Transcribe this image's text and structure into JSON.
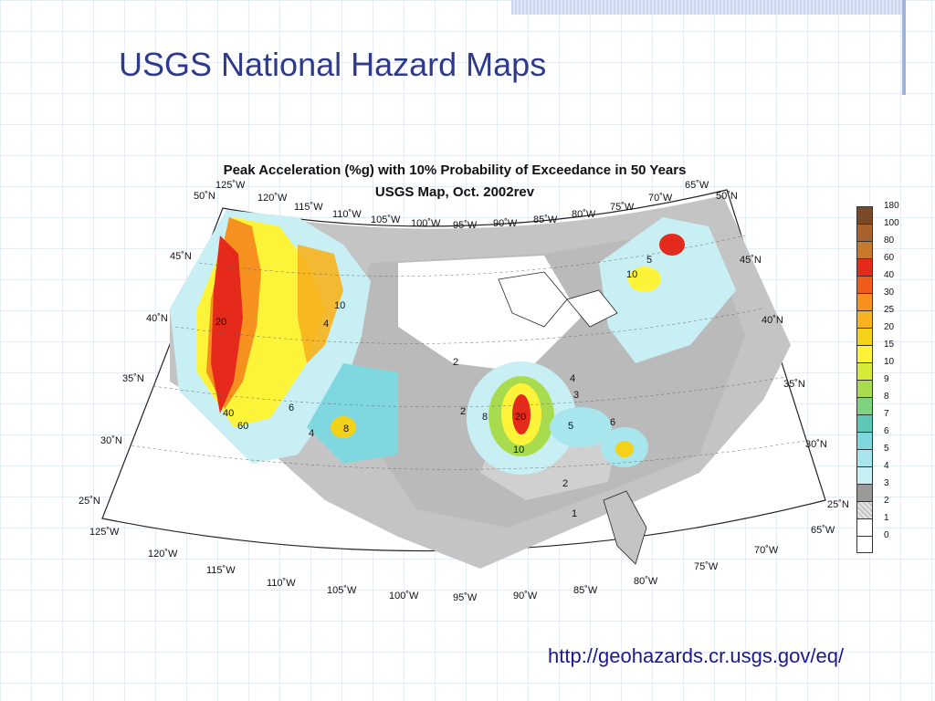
{
  "slide": {
    "title": "USGS National Hazard Maps",
    "url": "http://geohazards.cr.usgs.gov/eq/"
  },
  "map": {
    "title_line1": "Peak Acceleration (%g) with 10% Probability of Exceedance in 50 Years",
    "title_line2": "USGS Map, Oct. 2002rev",
    "lat_labels": [
      "50˚N",
      "45˚N",
      "40˚N",
      "35˚N",
      "30˚N",
      "25˚N"
    ],
    "lon_top": [
      "125˚W",
      "120˚W",
      "115˚W",
      "110˚W",
      "105˚W",
      "100˚W",
      "95˚W",
      "90˚W",
      "85˚W",
      "80˚W",
      "75˚W",
      "70˚W",
      "65˚W"
    ],
    "lon_bottom": [
      "125˚W",
      "120˚W",
      "115˚W",
      "110˚W",
      "105˚W",
      "100˚W",
      "95˚W",
      "90˚W",
      "85˚W",
      "80˚W",
      "75˚W",
      "70˚W",
      "65˚W"
    ],
    "contour_labels": [
      "20",
      "10",
      "4",
      "6",
      "8",
      "4",
      "40",
      "60",
      "2",
      "20",
      "10",
      "8",
      "4",
      "3",
      "5",
      "6",
      "2",
      "10",
      "5",
      "1",
      "2"
    ]
  },
  "legend": {
    "levels": [
      {
        "label": "180",
        "color": "#7a4a26"
      },
      {
        "label": "100",
        "color": "#a8632c"
      },
      {
        "label": "80",
        "color": "#c77a2a"
      },
      {
        "label": "60",
        "color": "#e52a1c"
      },
      {
        "label": "40",
        "color": "#f05a1a"
      },
      {
        "label": "30",
        "color": "#f6901e"
      },
      {
        "label": "25",
        "color": "#f7b21e"
      },
      {
        "label": "20",
        "color": "#f5d21a"
      },
      {
        "label": "15",
        "color": "#fdf43a"
      },
      {
        "label": "10",
        "color": "#d6ea3a"
      },
      {
        "label": "9",
        "color": "#a8dc4e"
      },
      {
        "label": "8",
        "color": "#7fd280"
      },
      {
        "label": "7",
        "color": "#5ec8b4"
      },
      {
        "label": "6",
        "color": "#7fd8e0"
      },
      {
        "label": "5",
        "color": "#a8e6ee"
      },
      {
        "label": "4",
        "color": "#c8f0f4"
      },
      {
        "label": "3",
        "color": "#9a9a9a"
      },
      {
        "label": "2",
        "color": "#c4c4c4"
      },
      {
        "label": "1",
        "color": "#ffffff"
      },
      {
        "label": "0",
        "color": "#ffffff"
      }
    ]
  }
}
